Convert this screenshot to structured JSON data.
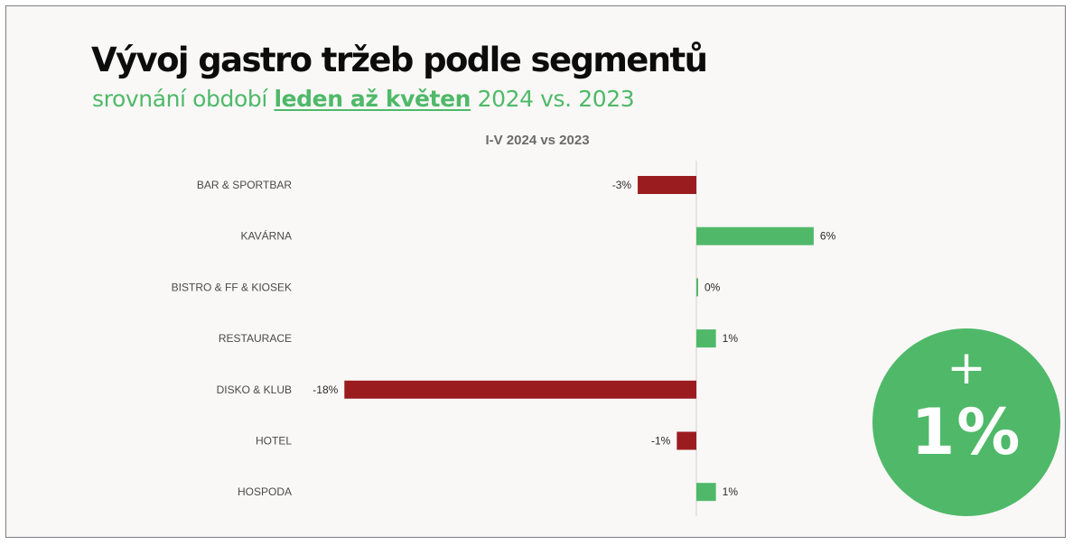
{
  "header": {
    "title": "Vývoj gastro tržeb podle segmentů",
    "subtitle_pre": "srovnání období ",
    "subtitle_emph": "leden až květen",
    "subtitle_post": " 2024 vs. 2023"
  },
  "badge": {
    "sign": "+",
    "value": "1%"
  },
  "colors": {
    "positive": "#4fb969",
    "negative": "#9b1c1f",
    "accent": "#4fb969"
  },
  "chart_data": {
    "type": "bar",
    "orientation": "horizontal",
    "title": "I-V 2024 vs 2023",
    "categories": [
      "BAR & SPORTBAR",
      "KAVÁRNA",
      "BISTRO & FF & KIOSEK",
      "RESTAURACE",
      "DISKO & KLUB",
      "HOTEL",
      "HOSPODA"
    ],
    "values": [
      -3,
      6,
      0,
      1,
      -18,
      -1,
      1
    ],
    "data_labels": [
      "-3%",
      "6%",
      "0%",
      "1%",
      "-18%",
      "-1%",
      "1%"
    ],
    "xlim": [
      -18,
      7
    ],
    "unit": "%",
    "grid": false,
    "legend": "none"
  }
}
